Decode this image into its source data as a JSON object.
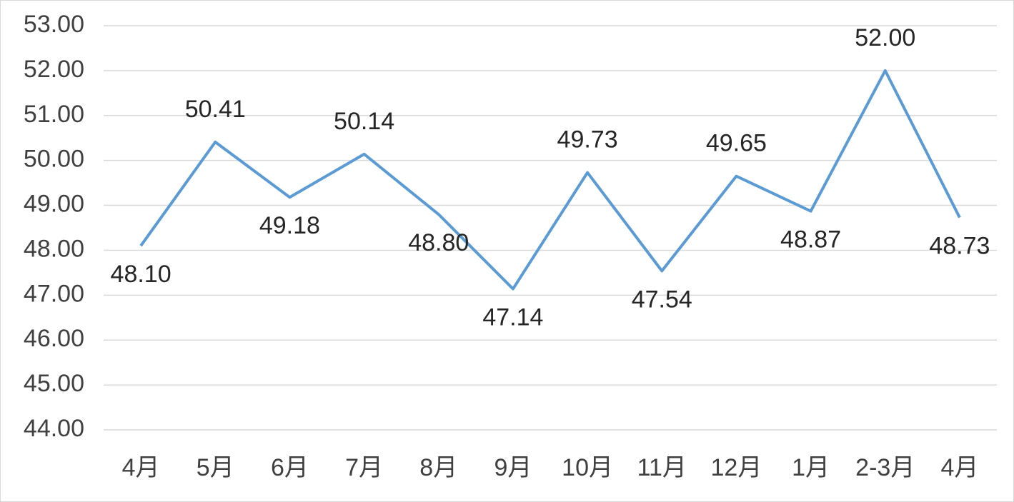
{
  "chart_data": {
    "type": "line",
    "categories": [
      "4月",
      "5月",
      "6月",
      "7月",
      "8月",
      "9月",
      "10月",
      "11月",
      "12月",
      "1月",
      "2-3月",
      "4月"
    ],
    "series": [
      {
        "color": "#5b9bd5",
        "values": [
          48.1,
          50.41,
          49.18,
          50.14,
          48.8,
          47.14,
          49.73,
          47.54,
          49.65,
          48.87,
          52.0,
          48.73
        ],
        "value_labels": [
          "48.10",
          "50.41",
          "49.18",
          "50.14",
          "48.80",
          "47.14",
          "49.73",
          "47.54",
          "49.65",
          "48.87",
          "52.00",
          "48.73"
        ]
      }
    ],
    "ylim": [
      44,
      53
    ],
    "yticks": [
      {
        "value": 44,
        "label": "44.00"
      },
      {
        "value": 45,
        "label": "45.00"
      },
      {
        "value": 46,
        "label": "46.00"
      },
      {
        "value": 47,
        "label": "47.00"
      },
      {
        "value": 48,
        "label": "48.00"
      },
      {
        "value": 49,
        "label": "49.00"
      },
      {
        "value": 50,
        "label": "50.00"
      },
      {
        "value": 51,
        "label": "51.00"
      },
      {
        "value": 52,
        "label": "52.00"
      },
      {
        "value": 53,
        "label": "53.00"
      }
    ],
    "grid": true
  }
}
